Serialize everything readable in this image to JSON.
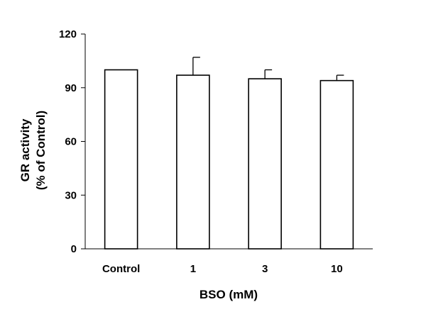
{
  "chart_data": {
    "type": "bar",
    "categories": [
      "Control",
      "1",
      "3",
      "10"
    ],
    "values": [
      100,
      97,
      95,
      94
    ],
    "errors": [
      0,
      10,
      5,
      3
    ],
    "xlabel": "BSO (mM)",
    "ylabel_lines": [
      "GR activity",
      "(% of Control)"
    ],
    "ylim": [
      0,
      120
    ],
    "yticks": [
      0,
      30,
      60,
      90,
      120
    ],
    "grid": false,
    "legend": "none",
    "bar_fill": "#ffffff",
    "bar_stroke": "#000000"
  }
}
